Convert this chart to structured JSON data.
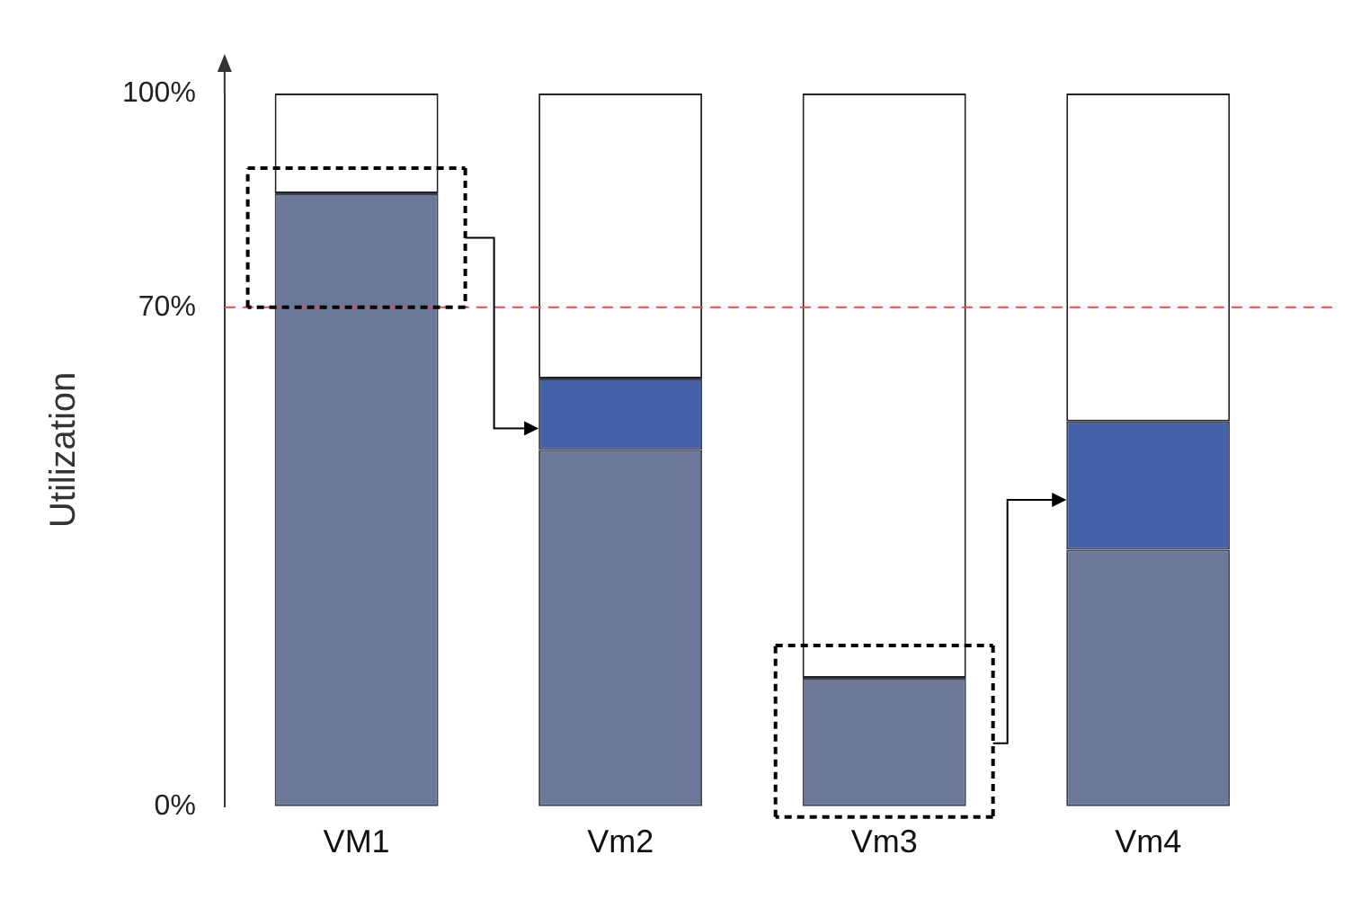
{
  "chart_data": {
    "type": "bar",
    "stacked": true,
    "ylabel": "Utilization",
    "categories": [
      "VM1",
      "Vm2",
      "Vm3",
      "Vm4"
    ],
    "series": [
      {
        "color": "#6b7899",
        "values": [
          86,
          50,
          18,
          36
        ]
      },
      {
        "color": "#4460a8",
        "values": [
          0,
          10,
          0,
          18
        ]
      },
      {
        "color": "#ffffff",
        "values": [
          14,
          40,
          82,
          46
        ]
      }
    ],
    "ylim": [
      0,
      100
    ],
    "yticks": [
      {
        "value": 0,
        "label": "0%"
      },
      {
        "value": 70,
        "label": "70%"
      },
      {
        "value": 100,
        "label": "100%"
      }
    ],
    "ref_lines": [
      {
        "axis": "y",
        "value": 70,
        "color": "#e05050",
        "line_style": "dashed"
      }
    ],
    "grid": false,
    "legend": false
  }
}
